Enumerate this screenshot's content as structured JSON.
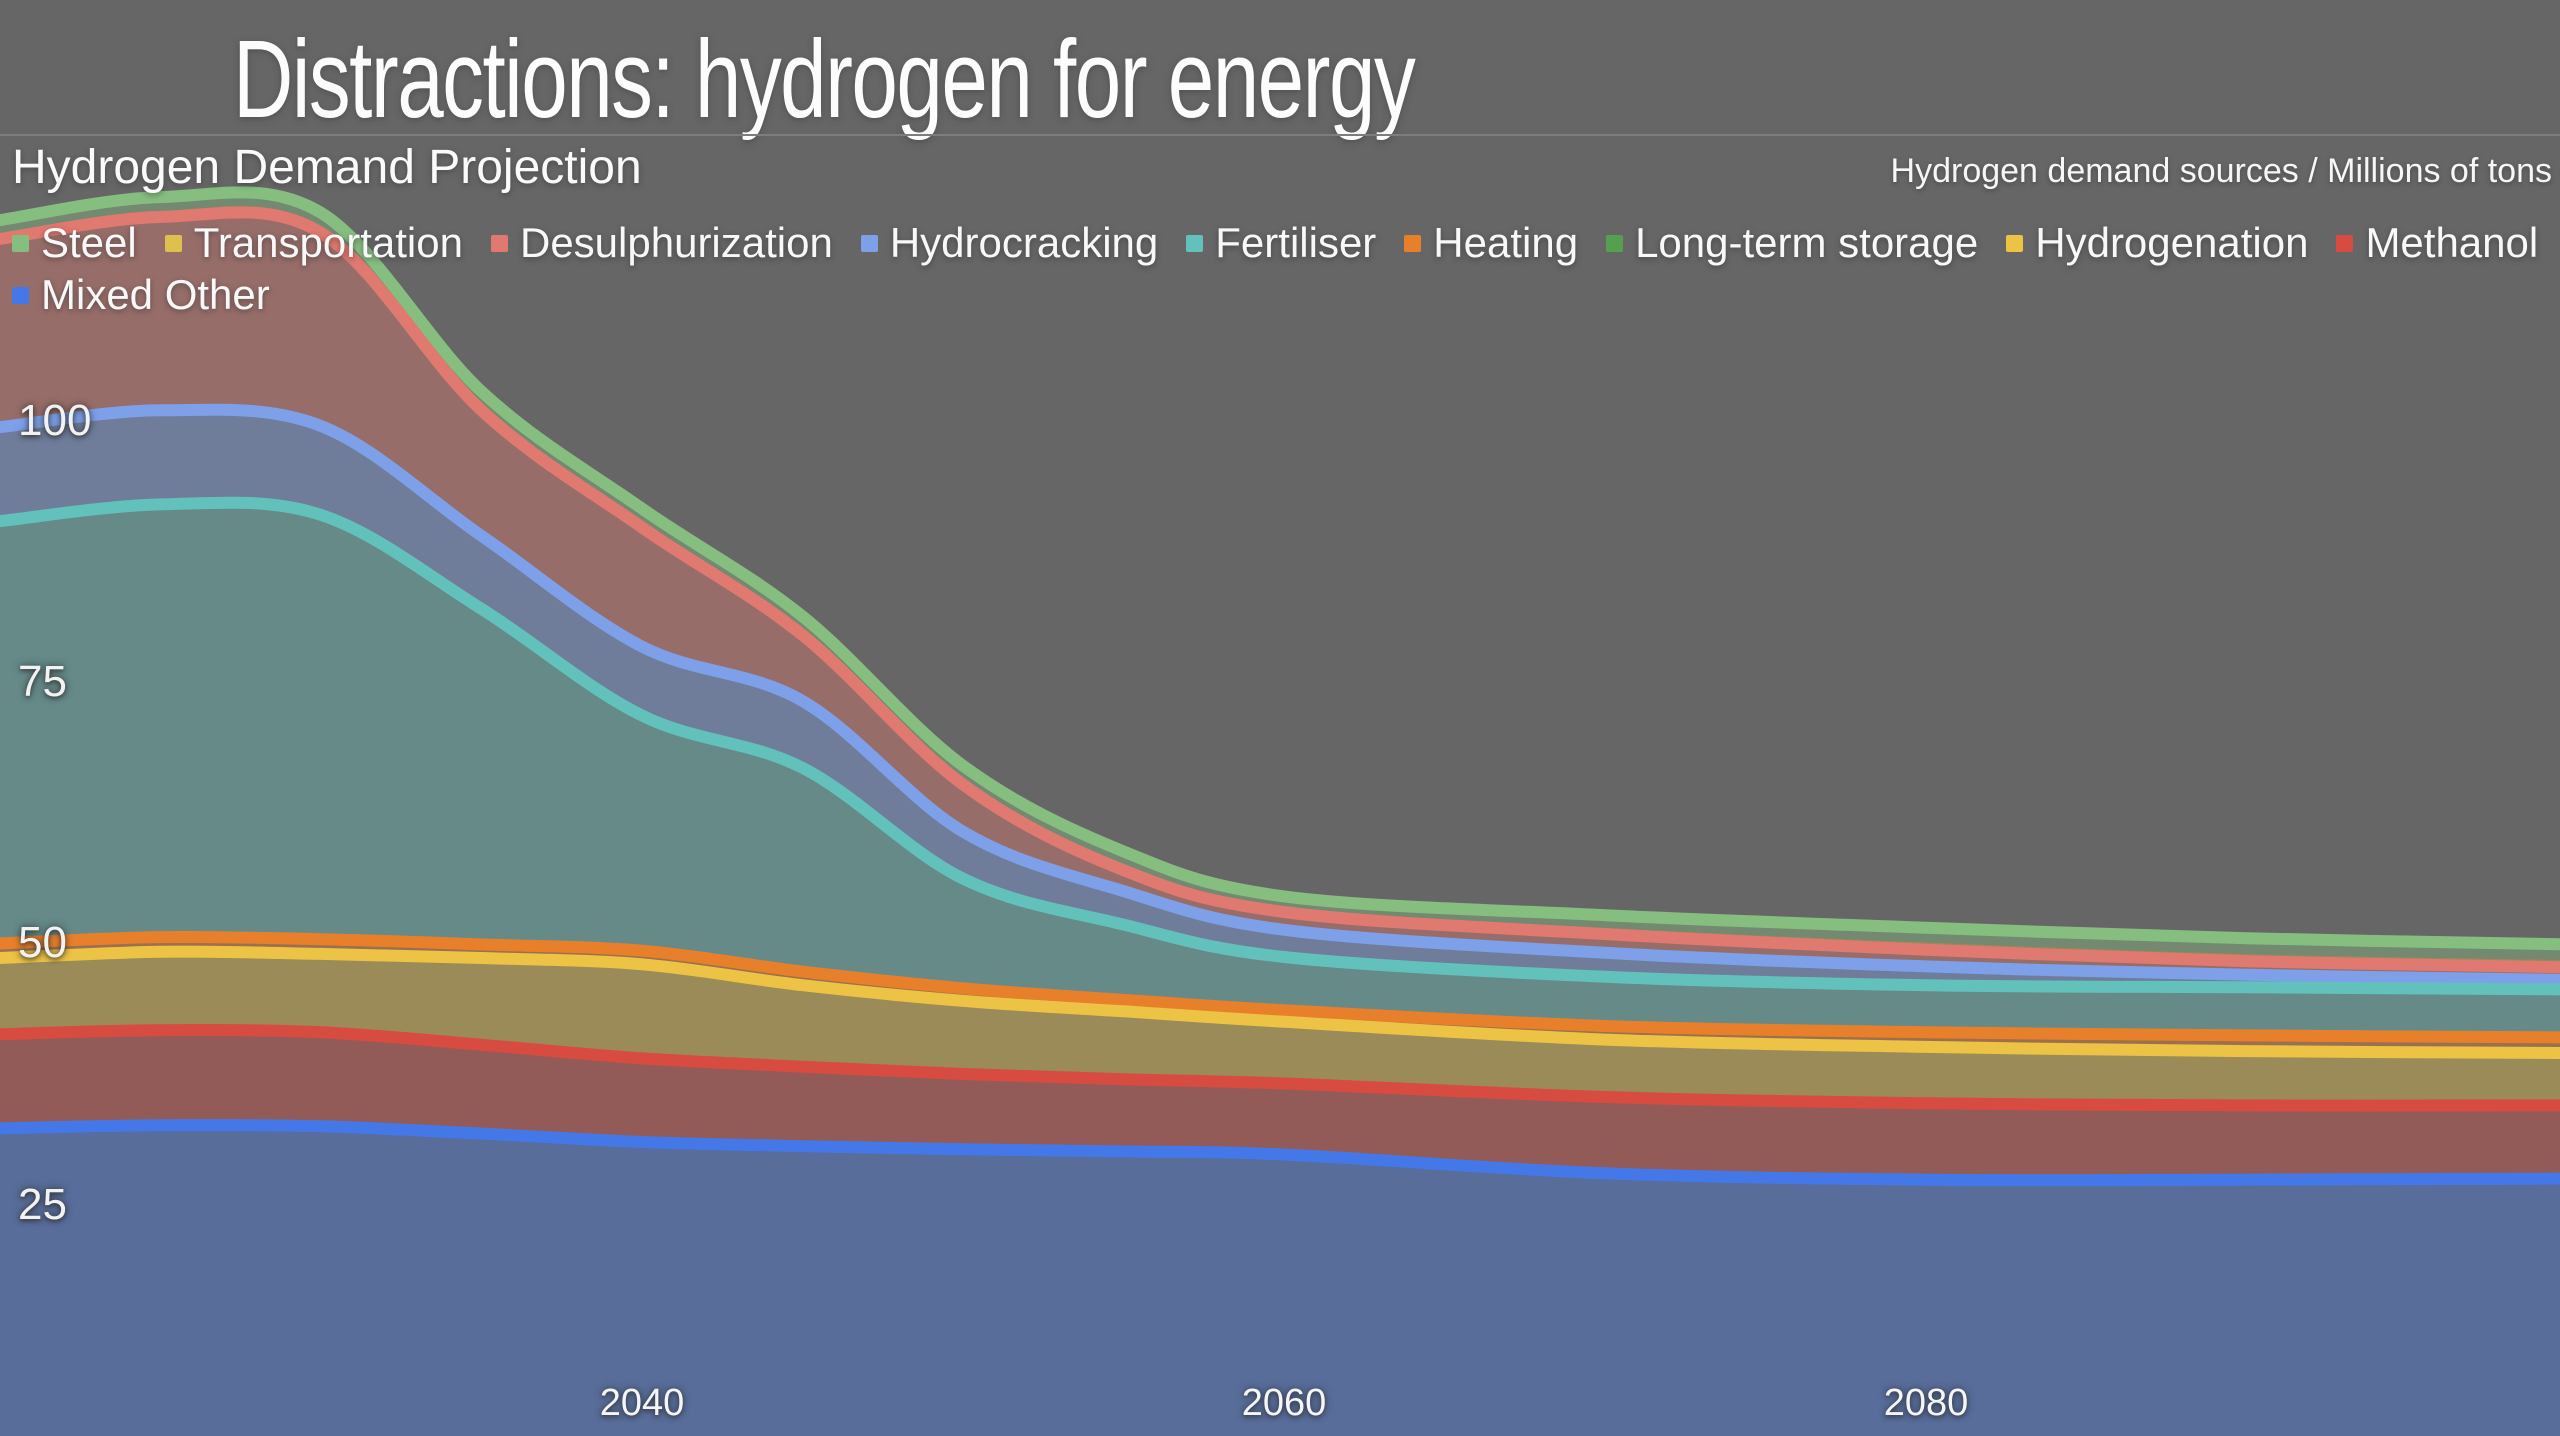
{
  "page": {
    "background_color": "#666666",
    "divider_color": "#7d7d7d"
  },
  "headline": {
    "title": "Distractions: hydrogen for energy"
  },
  "chart_header": {
    "title": "Hydrogen Demand Projection",
    "unit_label": "Hydrogen demand sources / Millions of tons"
  },
  "chart_data": {
    "type": "area",
    "stacked": true,
    "title": "Hydrogen Demand Projection",
    "ylabel": "Hydrogen demand sources / Millions of tons",
    "xlabel": "",
    "grid": false,
    "legend_position": "top",
    "x": [
      2020,
      2025,
      2030,
      2035,
      2040,
      2045,
      2050,
      2055,
      2060,
      2070,
      2080,
      2090,
      2100
    ],
    "x_ticks": [
      2040,
      2060,
      2080
    ],
    "y_ticks": [
      25,
      50,
      75,
      100
    ],
    "xlim": [
      2020,
      2100
    ],
    "ylim": [
      0,
      140
    ],
    "fill_opacity": 0.4,
    "series": [
      {
        "name": "Steel",
        "color": "#86be80",
        "stroke": true,
        "values": [
          1.3,
          1.3,
          1.3,
          1.2,
          1.2,
          1.2,
          1.3,
          1.3,
          1.0,
          1.2,
          1.4,
          1.5,
          1.5
        ]
      },
      {
        "name": "Transportation",
        "color": "#dfc04f",
        "stroke": false,
        "values": [
          0.5,
          0.6,
          0.6,
          0.6,
          0.6,
          0.6,
          0.5,
          0.5,
          0.5,
          0.6,
          0.7,
          0.7,
          0.7
        ]
      },
      {
        "name": "Desulphurization",
        "color": "#e0796f",
        "stroke": true,
        "values": [
          18.0,
          18.5,
          18.5,
          12.0,
          11.4,
          6.3,
          4.5,
          2.0,
          1.7,
          1.8,
          1.6,
          1.3,
          1.2
        ]
      },
      {
        "name": "Hydrocracking",
        "color": "#7da0e8",
        "stroke": true,
        "values": [
          9.0,
          9.0,
          8.5,
          7.0,
          6.6,
          6.4,
          4.5,
          3.2,
          2.6,
          2.3,
          1.8,
          1.2,
          0.9
        ]
      },
      {
        "name": "Fertiliser",
        "color": "#63c1bb",
        "stroke": true,
        "values": [
          40.4,
          41.4,
          40.6,
          32.1,
          22.5,
          19.5,
          10.5,
          7.2,
          5.1,
          4.7,
          4.5,
          4.6,
          4.6
        ]
      },
      {
        "name": "Heating",
        "color": "#e8802b",
        "stroke": true,
        "values": [
          1.2,
          1.2,
          1.2,
          1.1,
          1.1,
          1.1,
          1.0,
          0.9,
          0.9,
          1.0,
          1.1,
          1.2,
          1.2
        ]
      },
      {
        "name": "Long-term storage",
        "color": "#55a050",
        "stroke": false,
        "values": [
          0.2,
          0.2,
          0.2,
          0.2,
          0.2,
          0.2,
          0.2,
          0.2,
          0.2,
          0.3,
          0.3,
          0.3,
          0.3
        ]
      },
      {
        "name": "Hydrogenation",
        "color": "#ecc344",
        "stroke": true,
        "values": [
          7.3,
          7.5,
          7.5,
          8.3,
          9.0,
          7.8,
          7.0,
          6.5,
          5.9,
          5.5,
          5.4,
          5.2,
          5.0
        ]
      },
      {
        "name": "Methanol",
        "color": "#d74b40",
        "stroke": true,
        "values": [
          9.0,
          9.1,
          9.0,
          8.5,
          8.0,
          7.6,
          7.2,
          6.9,
          6.8,
          7.3,
          7.3,
          7.1,
          7.0
        ]
      },
      {
        "name": "Mixed Other",
        "color": "#4478e8",
        "stroke": true,
        "values": [
          32.3,
          32.6,
          32.5,
          31.8,
          31.0,
          30.6,
          30.3,
          30.1,
          29.8,
          28.0,
          27.4,
          27.4,
          27.5
        ]
      }
    ]
  }
}
